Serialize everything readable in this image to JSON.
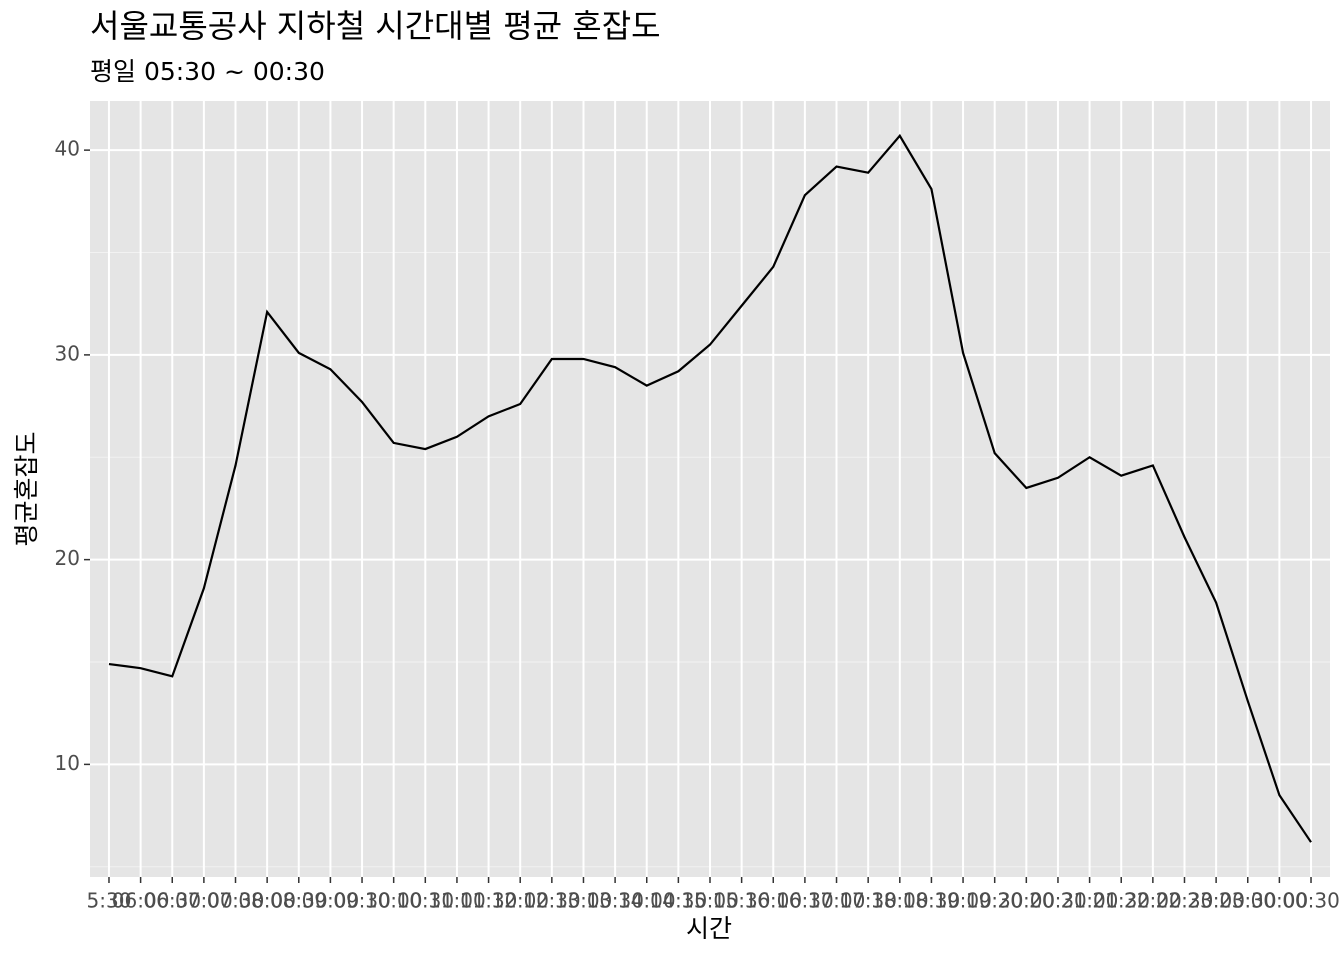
{
  "chart_data": {
    "type": "line",
    "title": "서울교통공사 지하철 시간대별 평균 혼잡도",
    "subtitle": "평일 05:30 ~ 00:30",
    "x_label": "시간",
    "y_label": "평균혼잡도",
    "categories": [
      "5:30",
      "06:00",
      "06:30",
      "07:00",
      "07:30",
      "08:00",
      "08:30",
      "09:00",
      "09:30",
      "10:00",
      "10:30",
      "11:00",
      "11:30",
      "12:00",
      "12:30",
      "13:00",
      "13:30",
      "14:00",
      "14:30",
      "15:00",
      "15:30",
      "16:00",
      "16:30",
      "17:00",
      "17:30",
      "18:00",
      "18:30",
      "19:00",
      "19:30",
      "20:00",
      "20:30",
      "21:00",
      "21:30",
      "22:00",
      "22:30",
      "23:00",
      "23:30",
      "00:00",
      "00:30"
    ],
    "values": [
      14.9,
      14.7,
      14.3,
      18.6,
      24.6,
      32.1,
      30.1,
      29.3,
      27.7,
      25.7,
      25.4,
      26.0,
      27.0,
      27.6,
      29.8,
      29.8,
      29.4,
      28.5,
      29.2,
      30.5,
      32.4,
      34.3,
      37.8,
      39.2,
      38.9,
      40.7,
      38.1,
      30.1,
      25.2,
      23.5,
      24.0,
      25.0,
      24.1,
      24.6,
      21.1,
      17.9,
      13.1,
      8.5,
      6.2
    ],
    "color": "#000000",
    "ylim": [
      4.5,
      42.4
    ],
    "yticks": [
      10,
      20,
      30,
      40
    ],
    "grid": true
  }
}
